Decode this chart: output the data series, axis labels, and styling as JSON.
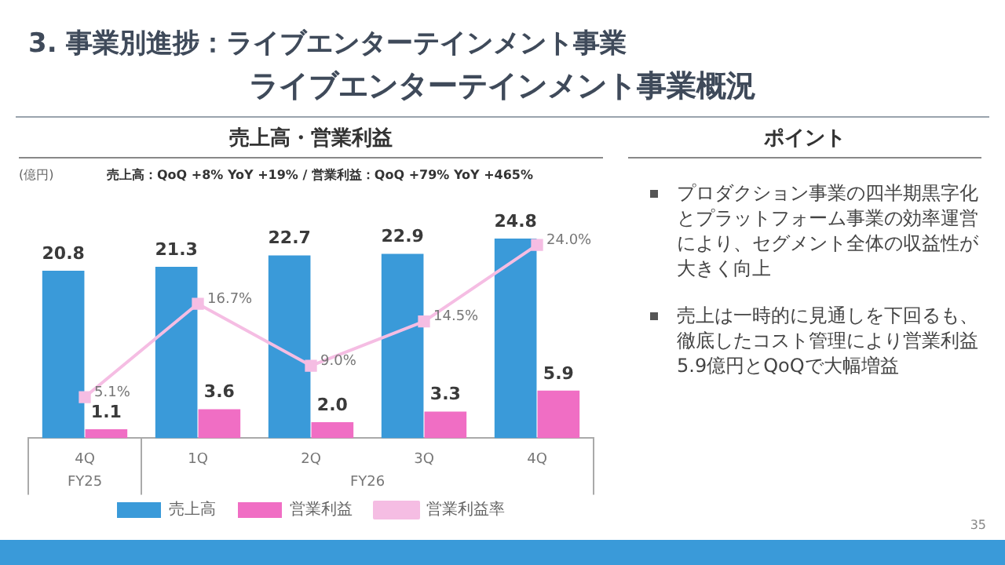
{
  "chart_data": [
    {
      "type": "other",
      "title": "3. 事業別進捗：ライブエンターテインメント事業",
      "subtitle": "ライブエンターテインメント事業概況",
      "annotations": [
        "35"
      ]
    },
    {
      "type": "bar",
      "title": "売上高・営業利益",
      "subtitle": "売上高：QoQ +8% YoY +19% / 営業利益：QoQ +79% YoY +465%",
      "ylabel": "(億円)",
      "categories": [
        "4Q",
        "1Q",
        "2Q",
        "3Q",
        "4Q"
      ],
      "annotations": [
        "FY25",
        "FY26"
      ],
      "legend": "bottom",
      "grid": false,
      "series": [
        {
          "name": "売上高",
          "color": "#3a9ad9",
          "values": [
            20.8,
            21.3,
            22.7,
            22.9,
            24.8
          ],
          "value_labels": [
            "20.8",
            "21.3",
            "22.7",
            "22.9",
            "24.8"
          ]
        },
        {
          "name": "営業利益",
          "color": "#f06ec4",
          "values": [
            1.1,
            3.6,
            2.0,
            3.3,
            5.9
          ],
          "value_labels": [
            "1.1",
            "3.6",
            "2.0",
            "3.3",
            "5.9"
          ]
        },
        {
          "name": "営業利益率",
          "type": "line",
          "marker": "square",
          "color": "#f5bde3",
          "values": [
            5.1,
            16.7,
            9.0,
            14.5,
            24.0
          ],
          "value_labels": [
            "5.1%",
            "16.7%",
            "9.0%",
            "14.5%",
            "24.0%"
          ]
        }
      ]
    },
    {
      "type": "other",
      "title": "ポイント",
      "annotations": [
        "プロダクション事業の四半期黒字化とプラットフォーム事業の効率運営により、セグメント全体の収益性が大きく向上",
        "売上は一時的に見通しを下回るも、徹底したコスト管理により営業利益5.9億円とQoQで大幅増益"
      ]
    }
  ]
}
